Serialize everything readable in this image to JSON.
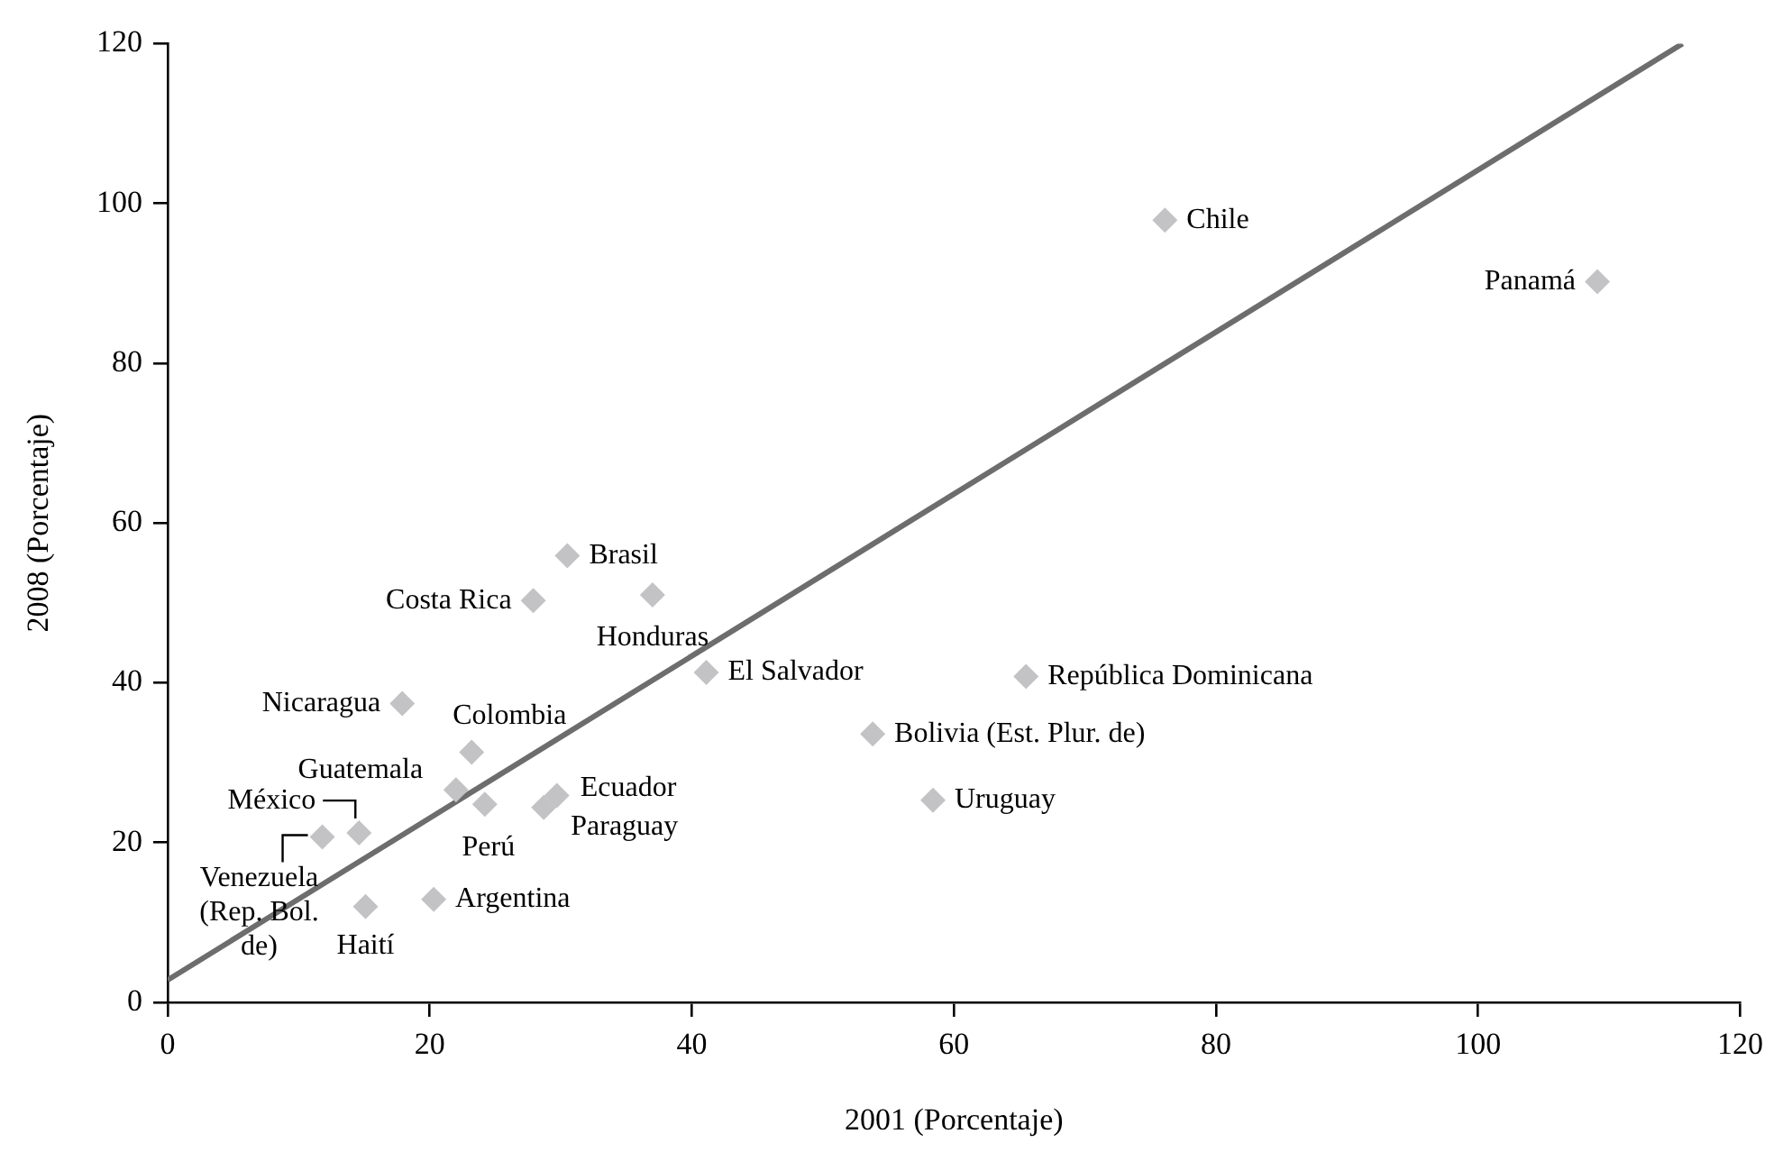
{
  "chart_data": {
    "type": "scatter",
    "xlabel": "2001 (Porcentaje)",
    "ylabel": "2008 (Porcentaje)",
    "xlim": [
      0,
      120
    ],
    "xticks": [
      0,
      20,
      40,
      60,
      80,
      100,
      120
    ],
    "ylim": [
      0,
      120
    ],
    "yticks": [
      0,
      20,
      40,
      60,
      80,
      100,
      120
    ],
    "grid": false,
    "legend": false,
    "marker": "diamond",
    "series": [
      {
        "color": "#c3c3c5",
        "x": [
          76.1,
          109.1,
          30.5,
          27.9,
          37.0,
          41.1,
          65.5,
          53.8,
          58.4,
          17.9,
          23.2,
          22.0,
          24.2,
          29.7,
          28.7,
          14.6,
          11.8,
          15.1,
          20.3
        ],
        "values": [
          97.9,
          90.2,
          55.9,
          50.3,
          51.0,
          41.3,
          40.8,
          33.6,
          25.3,
          37.4,
          31.3,
          26.6,
          24.8,
          25.9,
          24.4,
          21.2,
          20.7,
          12.0,
          12.9
        ]
      },
      {
        "type": "line",
        "color": "#6d6d6d",
        "x": [
          0,
          115.6
        ],
        "values": [
          2.8,
          120
        ],
        "marker": "none",
        "line_style": "solid"
      }
    ],
    "annotations": [
      {
        "text": "Chile",
        "x": 76.1,
        "y": 97.9
      },
      {
        "text": "Panamá",
        "x": 109.1,
        "y": 90.2
      },
      {
        "text": "Brasil",
        "x": 30.5,
        "y": 55.9
      },
      {
        "text": "Costa Rica",
        "x": 27.9,
        "y": 50.3
      },
      {
        "text": "Honduras",
        "x": 37.0,
        "y": 51.0
      },
      {
        "text": "El Salvador",
        "x": 41.1,
        "y": 41.3
      },
      {
        "text": "República Dominicana",
        "x": 65.5,
        "y": 40.8
      },
      {
        "text": "Bolivia (Est. Plur. de)",
        "x": 53.8,
        "y": 33.6
      },
      {
        "text": "Uruguay",
        "x": 58.4,
        "y": 25.3
      },
      {
        "text": "Nicaragua",
        "x": 17.9,
        "y": 37.4
      },
      {
        "text": "Colombia",
        "x": 23.2,
        "y": 31.3
      },
      {
        "text": "Guatemala",
        "x": 22.0,
        "y": 26.6
      },
      {
        "text": "Perú",
        "x": 24.2,
        "y": 24.8
      },
      {
        "text": "Ecuador",
        "x": 29.7,
        "y": 25.9
      },
      {
        "text": "Paraguay",
        "x": 28.7,
        "y": 24.4
      },
      {
        "text": "México",
        "x": 14.6,
        "y": 21.2
      },
      {
        "text": "Venezuela (Rep. Bol. de)",
        "x": 11.8,
        "y": 20.7
      },
      {
        "text": "Haití",
        "x": 15.1,
        "y": 12.0
      },
      {
        "text": "Argentina",
        "x": 20.3,
        "y": 12.9
      }
    ]
  }
}
